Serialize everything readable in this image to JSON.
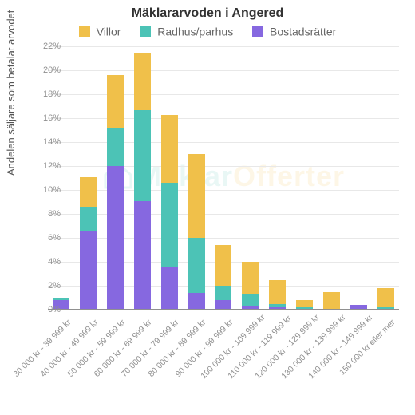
{
  "chart": {
    "type": "stacked-bar",
    "title": "Mäklararvoden i Angered",
    "title_fontsize": 16,
    "ylabel": "Andelen säljare som betalat arvodet",
    "label_fontsize": 13,
    "background_color": "#ffffff",
    "grid_color": "#e8e8e8",
    "axis_text_color": "#909090",
    "ylim": [
      0,
      22
    ],
    "ytick_step": 2,
    "ytick_suffix": "%",
    "bar_width_ratio": 0.62,
    "watermark": {
      "part1": "Mäklar",
      "part2": "Offerter",
      "color1": "#5bc5b8",
      "color2": "#f0c04a",
      "opacity": 0.13
    },
    "legend": [
      {
        "key": "villor",
        "label": "Villor",
        "color": "#f0c04a"
      },
      {
        "key": "radhus",
        "label": "Radhus/parhus",
        "color": "#4cc3b6"
      },
      {
        "key": "bostad",
        "label": "Bostadsrätter",
        "color": "#8668e0"
      }
    ],
    "categories": [
      "30 000 kr - 39 999 kr",
      "40 000 kr - 49 999 kr",
      "50 000 kr - 59 999 kr",
      "60 000 kr - 69 999 kr",
      "70 000 kr - 79 999 kr",
      "80 000 kr - 89 999 kr",
      "90 000 kr - 99 999 kr",
      "100 000 kr - 109 999 kr",
      "110 000 kr - 119 999 kr",
      "120 000 kr - 129 999 kr",
      "130 000 kr - 139 999 kr",
      "140 000 kr - 149 999 kr",
      "150 000 kr eller mer"
    ],
    "series": {
      "bostad": [
        0.8,
        6.6,
        12.0,
        9.1,
        3.6,
        1.4,
        0.8,
        0.3,
        0.2,
        0.0,
        0.0,
        0.4,
        0.0
      ],
      "radhus": [
        0.2,
        2.0,
        3.2,
        7.6,
        7.0,
        4.6,
        1.2,
        1.0,
        0.3,
        0.2,
        0.0,
        0.0,
        0.2
      ],
      "villor": [
        0.0,
        2.5,
        4.4,
        4.7,
        5.7,
        7.0,
        3.4,
        2.7,
        2.0,
        0.6,
        1.5,
        0.0,
        1.6
      ]
    }
  }
}
